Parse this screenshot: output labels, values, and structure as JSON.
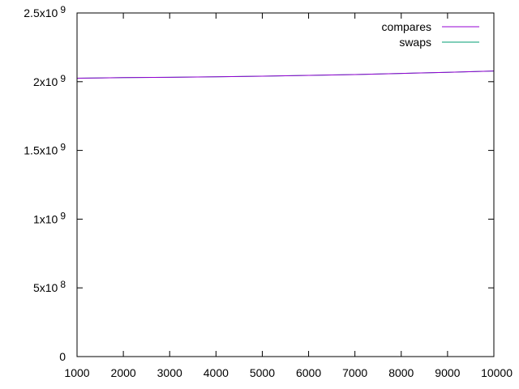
{
  "chart_data": {
    "type": "line",
    "title": "",
    "xlabel": "",
    "ylabel": "",
    "xlim": [
      1000,
      10000
    ],
    "ylim": [
      0,
      2500000000
    ],
    "grid": false,
    "legend_position": "top-right",
    "x_ticks": [
      {
        "value": 1000,
        "label": "1000"
      },
      {
        "value": 2000,
        "label": "2000"
      },
      {
        "value": 3000,
        "label": "3000"
      },
      {
        "value": 4000,
        "label": "4000"
      },
      {
        "value": 5000,
        "label": "5000"
      },
      {
        "value": 6000,
        "label": "6000"
      },
      {
        "value": 7000,
        "label": "7000"
      },
      {
        "value": 8000,
        "label": "8000"
      },
      {
        "value": 9000,
        "label": "9000"
      },
      {
        "value": 10000,
        "label": "10000"
      }
    ],
    "y_ticks": [
      {
        "value": 0,
        "mantissa": "0",
        "exponent": ""
      },
      {
        "value": 500000000,
        "mantissa": "5x10",
        "exponent": "8"
      },
      {
        "value": 1000000000,
        "mantissa": "1x10",
        "exponent": "9"
      },
      {
        "value": 1500000000,
        "mantissa": "1.5x10",
        "exponent": "9"
      },
      {
        "value": 2000000000,
        "mantissa": "2x10",
        "exponent": "9"
      },
      {
        "value": 2500000000,
        "mantissa": "2.5x10",
        "exponent": "9"
      }
    ],
    "series": [
      {
        "name": "compares",
        "color": "#9400d3",
        "x": [
          1000,
          2000,
          3000,
          4000,
          5000,
          6000,
          7000,
          8000,
          9000,
          10000
        ],
        "y": [
          2025000000,
          2030000000,
          2032000000,
          2036000000,
          2040000000,
          2046000000,
          2052000000,
          2060000000,
          2068000000,
          2078000000
        ]
      },
      {
        "name": "swaps",
        "color": "#009e73",
        "x": [
          1000,
          2000,
          3000,
          4000,
          5000,
          6000,
          7000,
          8000,
          9000,
          10000
        ],
        "y": [
          2025000000,
          2030000000,
          2032000000,
          2036000000,
          2040000000,
          2046000000,
          2052000000,
          2060000000,
          2068000000,
          2078000000
        ]
      }
    ]
  }
}
